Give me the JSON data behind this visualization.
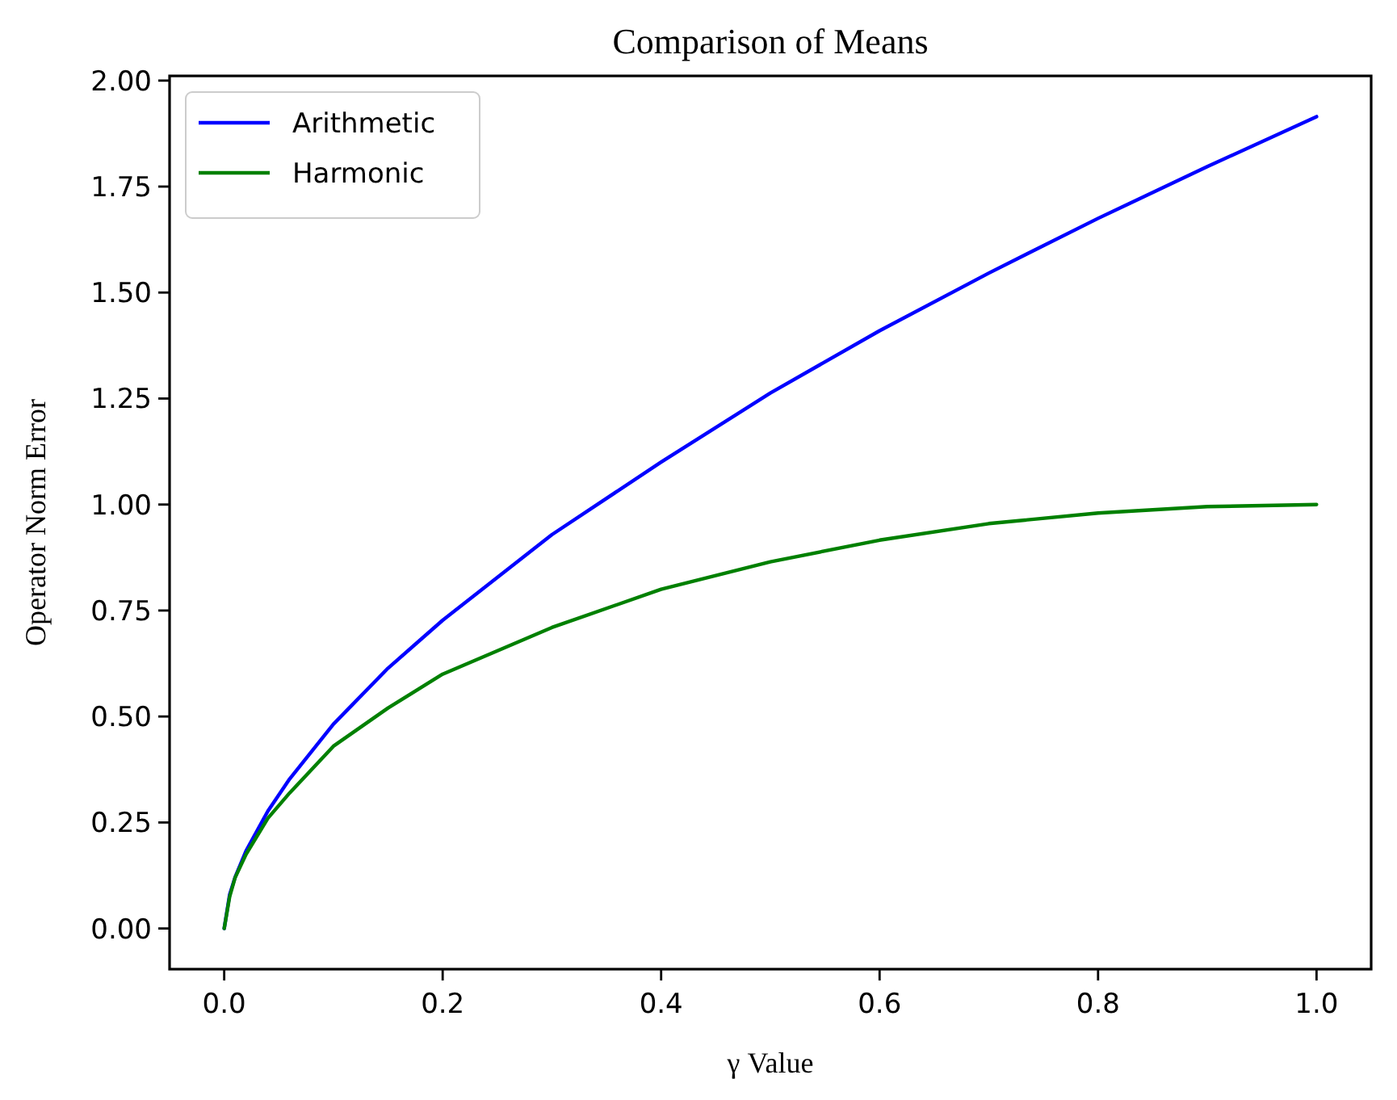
{
  "chart_data": {
    "type": "line",
    "title": "Comparison of Means",
    "xlabel": "γ Value",
    "ylabel": "Operator Norm Error",
    "x": [
      0,
      0.005,
      0.01,
      0.02,
      0.04,
      0.06,
      0.1,
      0.15,
      0.2,
      0.3,
      0.4,
      0.5,
      0.6,
      0.7,
      0.8,
      0.9,
      1.0
    ],
    "series": [
      {
        "name": "Arithmetic",
        "color": "#0000ff",
        "values": [
          0,
          0.08,
          0.121,
          0.183,
          0.277,
          0.353,
          0.482,
          0.614,
          0.727,
          0.929,
          1.1,
          1.263,
          1.41,
          1.546,
          1.675,
          1.797,
          1.915
        ]
      },
      {
        "name": "Harmonic",
        "color": "#008000",
        "values": [
          0,
          0.075,
          0.12,
          0.175,
          0.26,
          0.32,
          0.43,
          0.52,
          0.6,
          0.71,
          0.8,
          0.865,
          0.916,
          0.955,
          0.98,
          0.995,
          1.0
        ]
      }
    ],
    "xlim": [
      -0.05,
      1.05
    ],
    "ylim": [
      -0.096,
      2.011
    ],
    "xticks": [
      {
        "value": 0,
        "label": "0.0"
      },
      {
        "value": 0.2,
        "label": "0.2"
      },
      {
        "value": 0.4,
        "label": "0.4"
      },
      {
        "value": 0.6,
        "label": "0.6"
      },
      {
        "value": 0.8,
        "label": "0.8"
      },
      {
        "value": 1,
        "label": "1.0"
      }
    ],
    "yticks": [
      {
        "value": 0,
        "label": "0.00"
      },
      {
        "value": 0.25,
        "label": "0.25"
      },
      {
        "value": 0.5,
        "label": "0.50"
      },
      {
        "value": 0.75,
        "label": "0.75"
      },
      {
        "value": 1,
        "label": "1.00"
      },
      {
        "value": 1.25,
        "label": "1.25"
      },
      {
        "value": 1.5,
        "label": "1.50"
      },
      {
        "value": 1.75,
        "label": "1.75"
      },
      {
        "value": 2,
        "label": "2.00"
      }
    ],
    "grid": false,
    "legend": "top left",
    "marker": "none",
    "line_style": "solid"
  }
}
